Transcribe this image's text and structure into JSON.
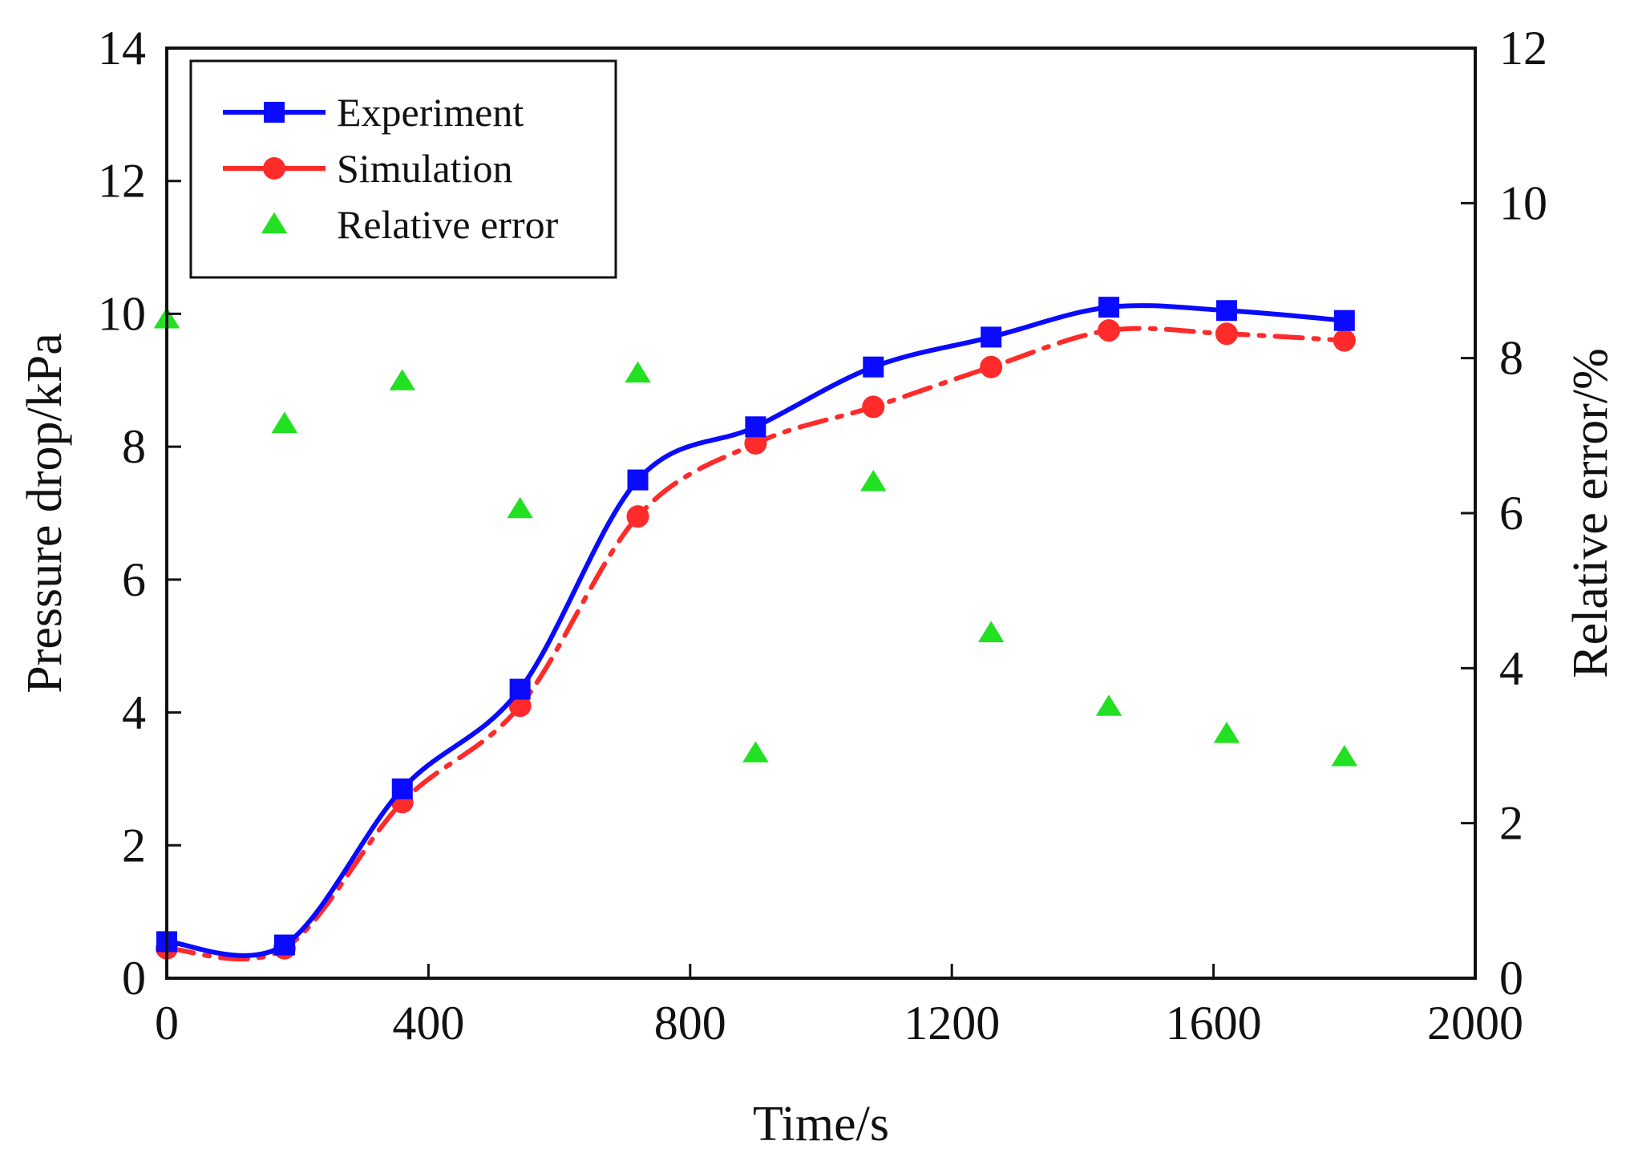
{
  "chart_data": {
    "type": "line",
    "title": "",
    "xlabel": "Time/s",
    "ylabel": "Pressure drop/kPa",
    "y2label": "Relative error/%",
    "xlim": [
      0,
      2000
    ],
    "ylim": [
      0,
      14
    ],
    "y2lim": [
      0,
      12
    ],
    "xticks": [
      0,
      400,
      800,
      1200,
      1600,
      2000
    ],
    "yticks": [
      0,
      2,
      4,
      6,
      8,
      10,
      12,
      14
    ],
    "y2ticks": [
      0,
      2,
      4,
      6,
      8,
      10,
      12
    ],
    "legend_position": "top-left",
    "series": [
      {
        "name": "Experiment",
        "axis": "left",
        "marker": "square",
        "line": "solid",
        "color": "#0a0aff",
        "x": [
          0,
          180,
          360,
          540,
          720,
          900,
          1080,
          1260,
          1440,
          1620,
          1800
        ],
        "values": [
          0.55,
          0.5,
          2.85,
          4.35,
          7.5,
          8.3,
          9.2,
          9.65,
          10.1,
          10.05,
          9.9
        ]
      },
      {
        "name": "Simulation",
        "axis": "left",
        "marker": "circle",
        "line": "dashdot",
        "color": "#ff2a2a",
        "x": [
          0,
          180,
          360,
          540,
          720,
          900,
          1080,
          1260,
          1440,
          1620,
          1800
        ],
        "values": [
          0.45,
          0.45,
          2.65,
          4.1,
          6.95,
          8.05,
          8.6,
          9.2,
          9.75,
          9.7,
          9.6
        ]
      },
      {
        "name": "Relative error",
        "axis": "right",
        "marker": "triangle",
        "line": "none",
        "color": "#22e022",
        "x": [
          0,
          180,
          360,
          540,
          720,
          900,
          1080,
          1260,
          1440,
          1620,
          1800
        ],
        "values": [
          8.5,
          7.15,
          7.7,
          6.05,
          7.8,
          2.9,
          6.4,
          4.45,
          3.5,
          3.15,
          2.85
        ]
      }
    ]
  }
}
